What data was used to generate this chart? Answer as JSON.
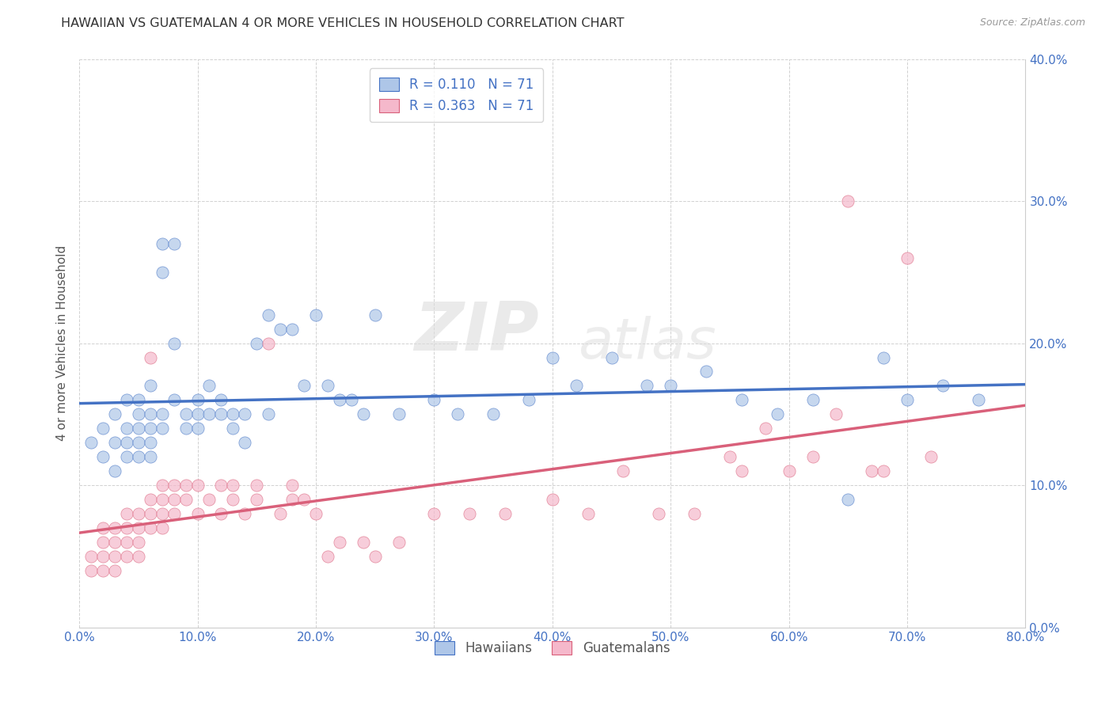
{
  "title": "HAWAIIAN VS GUATEMALAN 4 OR MORE VEHICLES IN HOUSEHOLD CORRELATION CHART",
  "source": "Source: ZipAtlas.com",
  "ylabel_label": "4 or more Vehicles in Household",
  "xlim": [
    0.0,
    0.8
  ],
  "ylim": [
    0.0,
    0.4
  ],
  "yticks": [
    0.0,
    0.1,
    0.2,
    0.3,
    0.4
  ],
  "xticks": [
    0.0,
    0.1,
    0.2,
    0.3,
    0.4,
    0.5,
    0.6,
    0.7,
    0.8
  ],
  "hawaiian_color": "#aec6e8",
  "guatemalan_color": "#f5b8cb",
  "hawaiian_line_color": "#4472c4",
  "guatemalan_line_color": "#d9607a",
  "legend_label_hawaiian": "Hawaiians",
  "legend_label_guatemalan": "Guatemalans",
  "R_hawaiian": "0.110",
  "R_guatemalan": "0.363",
  "N_hawaiian": 71,
  "N_guatemalan": 71,
  "watermark_zip": "ZIP",
  "watermark_atlas": "atlas",
  "hawaiian_x": [
    0.01,
    0.02,
    0.02,
    0.03,
    0.03,
    0.03,
    0.04,
    0.04,
    0.04,
    0.04,
    0.05,
    0.05,
    0.05,
    0.05,
    0.05,
    0.06,
    0.06,
    0.06,
    0.06,
    0.06,
    0.07,
    0.07,
    0.07,
    0.07,
    0.08,
    0.08,
    0.08,
    0.09,
    0.09,
    0.1,
    0.1,
    0.1,
    0.11,
    0.11,
    0.12,
    0.12,
    0.13,
    0.13,
    0.14,
    0.14,
    0.15,
    0.16,
    0.16,
    0.17,
    0.18,
    0.19,
    0.2,
    0.21,
    0.22,
    0.23,
    0.24,
    0.25,
    0.27,
    0.3,
    0.32,
    0.35,
    0.38,
    0.4,
    0.42,
    0.45,
    0.48,
    0.5,
    0.53,
    0.56,
    0.59,
    0.62,
    0.65,
    0.68,
    0.7,
    0.73,
    0.76
  ],
  "hawaiian_y": [
    0.13,
    0.14,
    0.12,
    0.15,
    0.13,
    0.11,
    0.16,
    0.14,
    0.13,
    0.12,
    0.15,
    0.16,
    0.14,
    0.13,
    0.12,
    0.17,
    0.15,
    0.14,
    0.13,
    0.12,
    0.27,
    0.25,
    0.15,
    0.14,
    0.27,
    0.2,
    0.16,
    0.15,
    0.14,
    0.15,
    0.16,
    0.14,
    0.15,
    0.17,
    0.16,
    0.15,
    0.14,
    0.15,
    0.15,
    0.13,
    0.2,
    0.22,
    0.15,
    0.21,
    0.21,
    0.17,
    0.22,
    0.17,
    0.16,
    0.16,
    0.15,
    0.22,
    0.15,
    0.16,
    0.15,
    0.15,
    0.16,
    0.19,
    0.17,
    0.19,
    0.17,
    0.17,
    0.18,
    0.16,
    0.15,
    0.16,
    0.09,
    0.19,
    0.16,
    0.17,
    0.16
  ],
  "guatemalan_x": [
    0.01,
    0.01,
    0.02,
    0.02,
    0.02,
    0.02,
    0.03,
    0.03,
    0.03,
    0.03,
    0.04,
    0.04,
    0.04,
    0.04,
    0.05,
    0.05,
    0.05,
    0.05,
    0.06,
    0.06,
    0.06,
    0.06,
    0.07,
    0.07,
    0.07,
    0.07,
    0.08,
    0.08,
    0.08,
    0.09,
    0.09,
    0.1,
    0.1,
    0.11,
    0.12,
    0.12,
    0.13,
    0.13,
    0.14,
    0.15,
    0.15,
    0.16,
    0.17,
    0.18,
    0.18,
    0.19,
    0.2,
    0.21,
    0.22,
    0.24,
    0.25,
    0.27,
    0.3,
    0.33,
    0.36,
    0.4,
    0.43,
    0.46,
    0.49,
    0.52,
    0.55,
    0.56,
    0.58,
    0.6,
    0.62,
    0.64,
    0.65,
    0.67,
    0.68,
    0.7,
    0.72
  ],
  "guatemalan_y": [
    0.05,
    0.04,
    0.07,
    0.06,
    0.05,
    0.04,
    0.07,
    0.06,
    0.05,
    0.04,
    0.08,
    0.07,
    0.06,
    0.05,
    0.08,
    0.07,
    0.06,
    0.05,
    0.19,
    0.09,
    0.08,
    0.07,
    0.1,
    0.09,
    0.08,
    0.07,
    0.1,
    0.09,
    0.08,
    0.1,
    0.09,
    0.1,
    0.08,
    0.09,
    0.1,
    0.08,
    0.1,
    0.09,
    0.08,
    0.1,
    0.09,
    0.2,
    0.08,
    0.1,
    0.09,
    0.09,
    0.08,
    0.05,
    0.06,
    0.06,
    0.05,
    0.06,
    0.08,
    0.08,
    0.08,
    0.09,
    0.08,
    0.11,
    0.08,
    0.08,
    0.12,
    0.11,
    0.14,
    0.11,
    0.12,
    0.15,
    0.3,
    0.11,
    0.11,
    0.26,
    0.12
  ]
}
